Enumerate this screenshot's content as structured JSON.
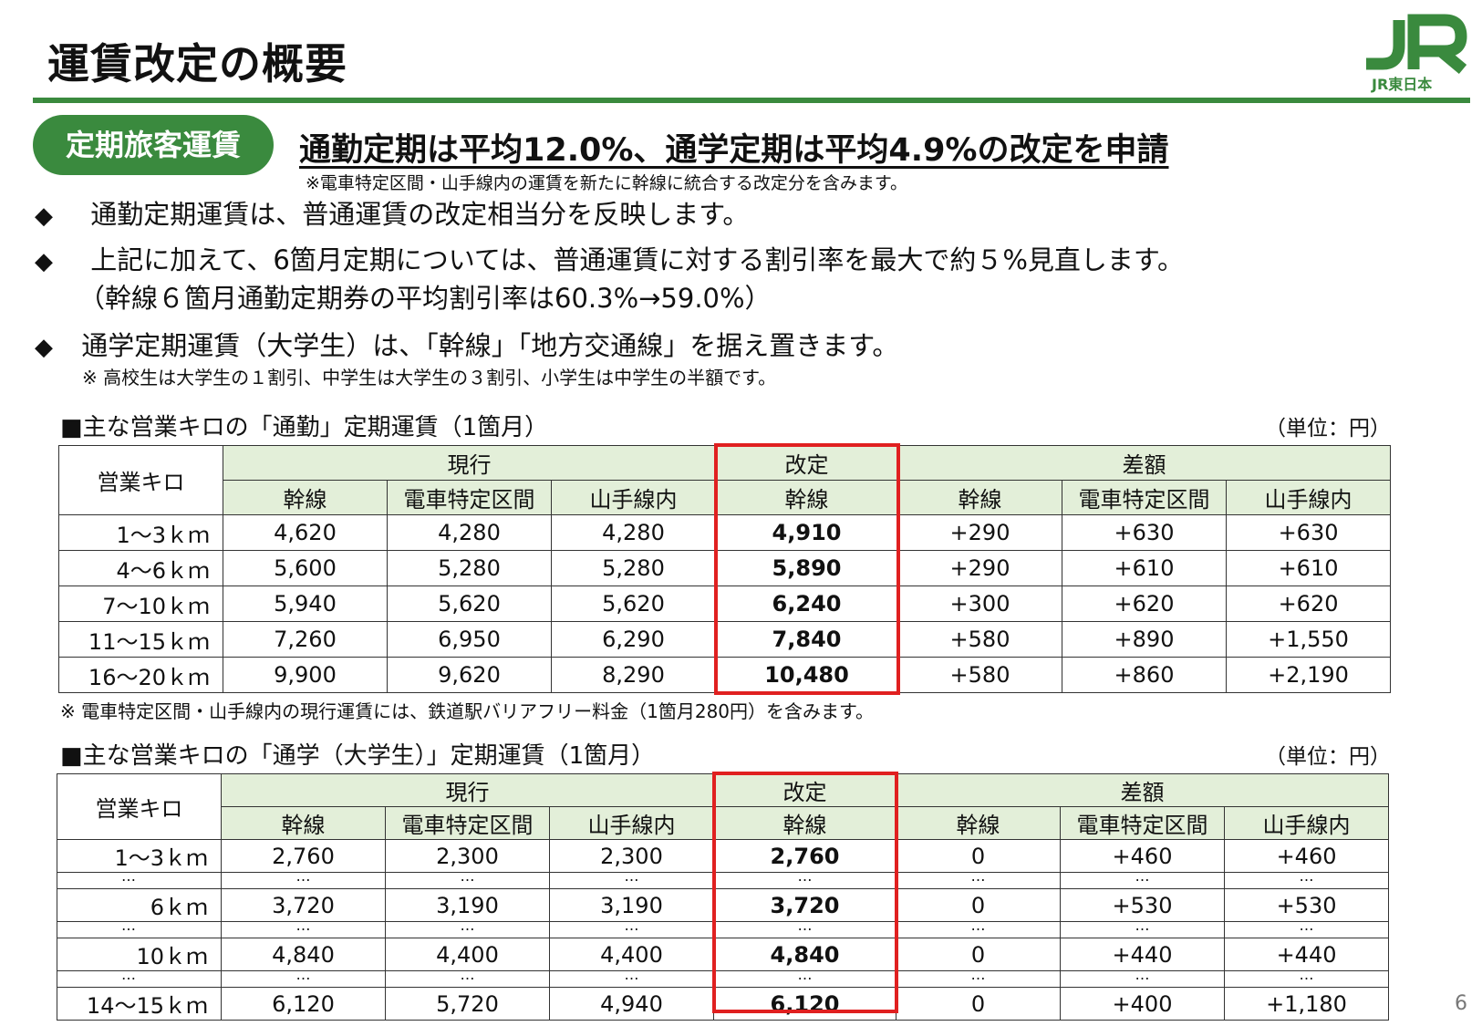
{
  "title": "運賃改定の概要",
  "logo": {
    "caption": "JR東日本",
    "color": "#3a8a3e"
  },
  "section_badge": "定期旅客運賃",
  "headline": "通勤定期は平均12.0%、通学定期は平均4.9%の改定を申請",
  "headline_note": "※電車特定区間・山手線内の運賃を新たに幹線に統合する改定分を含みます。",
  "bullets": [
    {
      "text": "通勤定期運賃は、普通運賃の改定相当分を反映します。"
    },
    {
      "text": "上記に加えて、6箇月定期については、普通運賃に対する割引率を最大で約５%見直します。",
      "cont": "（幹線６箇月通勤定期券の平均割引率は60.3%→59.0%）"
    },
    {
      "text": "通学定期運賃（大学生）は、「幹線」「地方交通線」を据え置きます。",
      "note": "※ 高校生は大学生の１割引、中学生は大学生の３割引、小学生は中学生の半額です。"
    }
  ],
  "headers": {
    "km": "営業キロ",
    "current": "現行",
    "revised": "改定",
    "diff": "差額",
    "trunk": "幹線",
    "special": "電車特定区間",
    "yamanote": "山手線内"
  },
  "table1": {
    "title": "■主な営業キロの「通勤」定期運賃（1箇月）",
    "unit": "（単位：円）",
    "rows": [
      {
        "km": "1～3ｋｍ",
        "cur_trunk": "4,620",
        "cur_special": "4,280",
        "cur_yamanote": "4,280",
        "rev_trunk": "4,910",
        "diff_trunk": "+290",
        "diff_special": "+630",
        "diff_yamanote": "+630"
      },
      {
        "km": "4～6ｋｍ",
        "cur_trunk": "5,600",
        "cur_special": "5,280",
        "cur_yamanote": "5,280",
        "rev_trunk": "5,890",
        "diff_trunk": "+290",
        "diff_special": "+610",
        "diff_yamanote": "+610"
      },
      {
        "km": "7～10ｋｍ",
        "cur_trunk": "5,940",
        "cur_special": "5,620",
        "cur_yamanote": "5,620",
        "rev_trunk": "6,240",
        "diff_trunk": "+300",
        "diff_special": "+620",
        "diff_yamanote": "+620"
      },
      {
        "km": "11～15ｋｍ",
        "cur_trunk": "7,260",
        "cur_special": "6,950",
        "cur_yamanote": "6,290",
        "rev_trunk": "7,840",
        "diff_trunk": "+580",
        "diff_special": "+890",
        "diff_yamanote": "+1,550"
      },
      {
        "km": "16～20ｋｍ",
        "cur_trunk": "9,900",
        "cur_special": "9,620",
        "cur_yamanote": "8,290",
        "rev_trunk": "10,480",
        "diff_trunk": "+580",
        "diff_special": "+860",
        "diff_yamanote": "+2,190"
      }
    ],
    "footnote": "※ 電車特定区間・山手線内の現行運賃には、鉄道駅バリアフリー料金（1箇月280円）を含みます。"
  },
  "table2": {
    "title": "■主な営業キロの「通学（大学生）」定期運賃（1箇月）",
    "unit": "（単位：円）",
    "ellipsis": "…",
    "rows": [
      {
        "km": "1～3ｋｍ",
        "cur_trunk": "2,760",
        "cur_special": "2,300",
        "cur_yamanote": "2,300",
        "rev_trunk": "2,760",
        "diff_trunk": "0",
        "diff_special": "+460",
        "diff_yamanote": "+460"
      },
      {
        "km": "6ｋｍ",
        "cur_trunk": "3,720",
        "cur_special": "3,190",
        "cur_yamanote": "3,190",
        "rev_trunk": "3,720",
        "diff_trunk": "0",
        "diff_special": "+530",
        "diff_yamanote": "+530"
      },
      {
        "km": "10ｋｍ",
        "cur_trunk": "4,840",
        "cur_special": "4,400",
        "cur_yamanote": "4,400",
        "rev_trunk": "4,840",
        "diff_trunk": "0",
        "diff_special": "+440",
        "diff_yamanote": "+440"
      },
      {
        "km": "14～15ｋｍ",
        "cur_trunk": "6,120",
        "cur_special": "5,720",
        "cur_yamanote": "4,940",
        "rev_trunk": "6,120",
        "diff_trunk": "0",
        "diff_special": "+400",
        "diff_yamanote": "+1,180"
      }
    ]
  },
  "page_number": "6",
  "colors": {
    "brand_green": "#3a8a3e",
    "header_bg": "#e3efd9",
    "highlight_red": "#e02020"
  }
}
